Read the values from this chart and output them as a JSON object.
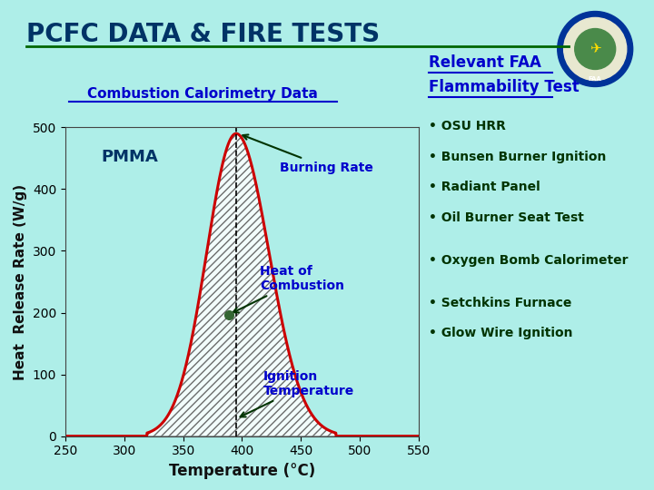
{
  "title": "PCFC DATA & FIRE TESTS",
  "background_color": "#aeeee8",
  "title_color": "#003366",
  "title_fontsize": 20,
  "subtitle_left": "Combustion Calorimetry Data",
  "subtitle_right_line1": "Relevant FAA",
  "subtitle_right_line2": "Flammability Test",
  "subtitle_color": "#0000cc",
  "xlabel": "Temperature (°C)",
  "ylabel": "Heat  Release Rate (W/g)",
  "xlim": [
    250,
    550
  ],
  "ylim": [
    0,
    500
  ],
  "xticks": [
    250,
    300,
    350,
    400,
    450,
    500,
    550
  ],
  "yticks": [
    0,
    100,
    200,
    300,
    400,
    500
  ],
  "curve_color": "#cc0000",
  "peak_x": 395,
  "peak_y": 490,
  "ignition_x": 395,
  "label_pmma": "PMMA",
  "label_burning_rate": "Burning Rate",
  "label_heat_combustion": "Heat of\nCombustion",
  "label_ignition": "Ignition\nTemperature",
  "label_color_blue": "#0000cc",
  "label_color_dark": "#003300",
  "right_col_items": [
    "• OSU HRR",
    "• Bunsen Burner Ignition",
    "• Radiant Panel",
    "• Oil Burner Seat Test"
  ],
  "right_col_items2": [
    "• Oxygen Bomb Calorimeter"
  ],
  "right_col_items3": [
    "• Setchkins Furnace",
    "• Glow Wire Ignition"
  ],
  "right_text_color": "#003300",
  "axis_label_fontsize": 11,
  "tick_fontsize": 10
}
